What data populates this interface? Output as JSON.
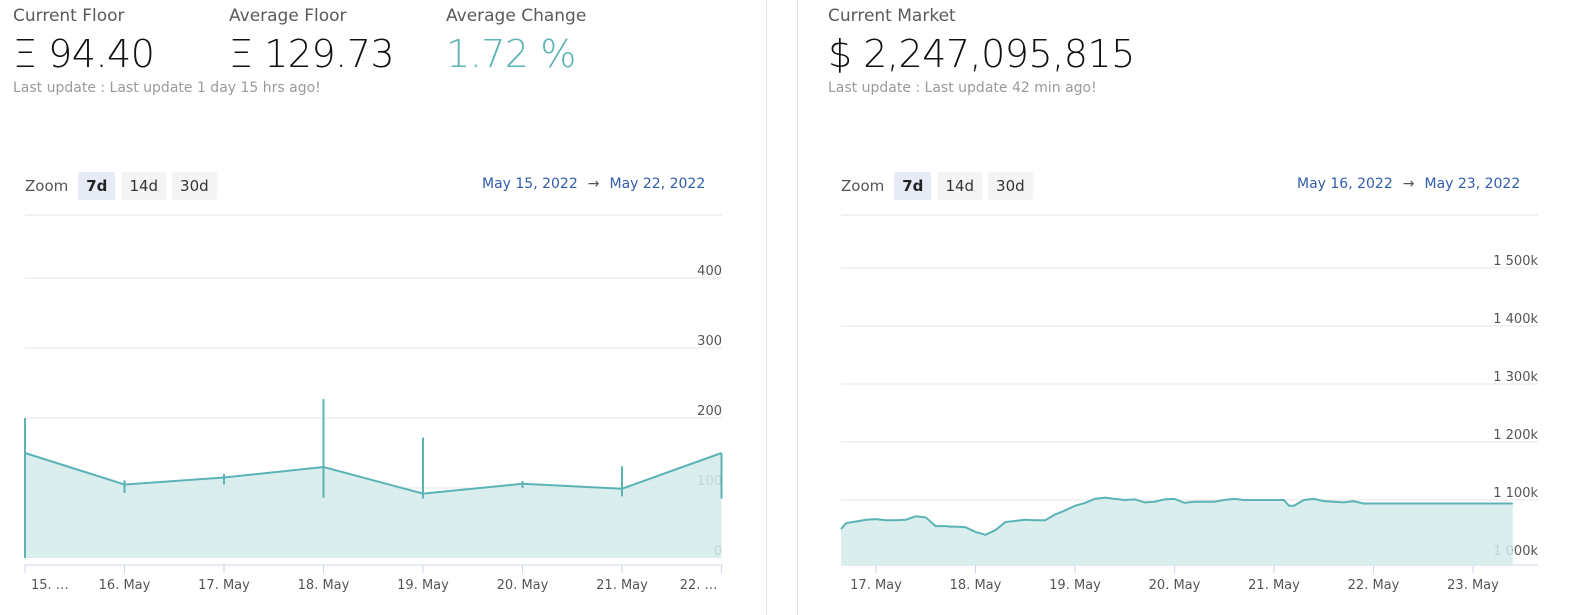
{
  "left": {
    "stats": [
      {
        "label": "Current Floor",
        "value": "Ξ 94.40"
      },
      {
        "label": "Average Floor",
        "value": "Ξ 129.73"
      },
      {
        "label": "Average Change",
        "value": "1.72 %"
      }
    ],
    "last_update": "Last update : Last update 1 day 15 hrs ago!",
    "zoom": {
      "label": "Zoom",
      "buttons": [
        "7d",
        "14d",
        "30d"
      ],
      "active": "7d"
    },
    "range": {
      "from": "May 15, 2022",
      "arrow": "→",
      "to": "May 22, 2022"
    }
  },
  "right": {
    "stats": [
      {
        "label": "Current Market",
        "value": "$ 2,247,095,815"
      }
    ],
    "last_update": "Last update : Last update 42 min ago!",
    "zoom": {
      "label": "Zoom",
      "buttons": [
        "7d",
        "14d",
        "30d"
      ],
      "active": "7d"
    },
    "range": {
      "from": "May 16, 2022",
      "arrow": "→",
      "to": "May 23, 2022"
    }
  },
  "colors": {
    "accent": "#5bb3b5",
    "fill": "#d3ebeb",
    "grid": "#e6e6e6",
    "link": "#335cad"
  },
  "chart_data": [
    {
      "type": "line",
      "chart_kind": "ohlc-line (line with high/low wicks)",
      "x_labels": [
        "15. …",
        "16. May",
        "17. May",
        "18. May",
        "19. May",
        "20. May",
        "21. May",
        "22. …"
      ],
      "y_ticks": [
        "0",
        "100",
        "200",
        "300",
        "400"
      ],
      "ylim": [
        0,
        400
      ],
      "series": [
        {
          "x": [
            0,
            1,
            2,
            3,
            4,
            5,
            6,
            7
          ],
          "values": [
            150,
            105,
            115,
            130,
            92,
            106,
            99,
            150
          ],
          "highs": [
            200,
            111,
            120,
            227,
            172,
            110,
            131,
            150
          ],
          "lows": [
            0,
            93,
            105,
            86,
            85,
            100,
            88,
            85
          ],
          "fill": true
        }
      ]
    },
    {
      "type": "area",
      "x_labels": [
        "17. May",
        "18. May",
        "19. May",
        "20. May",
        "21. May",
        "22. May",
        "23. May"
      ],
      "y_ticks": [
        "1 000k",
        "1 100k",
        "1 200k",
        "1 300k",
        "1 400k",
        "1 500k"
      ],
      "ylim": [
        1000,
        1500
      ],
      "unit": "thousands",
      "series": [
        {
          "x": [
            -0.4,
            -0.3,
            -0.2,
            -0.1,
            0,
            0.1,
            0.2,
            0.3,
            0.4,
            0.5,
            0.6,
            0.65,
            0.7,
            0.75,
            0.8,
            0.9,
            1.0,
            1.1,
            1.2,
            1.3,
            1.4,
            1.5,
            1.6,
            1.7,
            1.8,
            1.9,
            2.0,
            2.1,
            2.2,
            2.3,
            2.4,
            2.5,
            2.6,
            2.7,
            2.8,
            2.9,
            3.0,
            3.1,
            3.2,
            3.3,
            3.4,
            3.5,
            3.6,
            3.7,
            3.8,
            3.9,
            4.0,
            4.1,
            4.15,
            4.2,
            4.3,
            4.4,
            4.5,
            4.6,
            4.7,
            4.8,
            4.9,
            5.0,
            5.1,
            5.2,
            5.25,
            5.3,
            5.35,
            5.4,
            5.5,
            5.6,
            5.7,
            5.8,
            5.9,
            6.0,
            6.1,
            6.2,
            6.3,
            6.4
          ],
          "values": [
            1050,
            1060,
            1063,
            1066,
            1067,
            1065,
            1065,
            1066,
            1072,
            1070,
            1055,
            1055,
            1055,
            1054,
            1054,
            1053,
            1045,
            1040,
            1048,
            1062,
            1064,
            1066,
            1065,
            1065,
            1075,
            1082,
            1090,
            1095,
            1102,
            1104,
            1102,
            1100,
            1101,
            1096,
            1097,
            1101,
            1102,
            1095,
            1097,
            1097,
            1097,
            1100,
            1102,
            1100,
            1100,
            1100,
            1100,
            1100,
            1090,
            1090,
            1100,
            1102,
            1098,
            1097,
            1096,
            1098,
            1094,
            1094,
            1094,
            1094,
            1094,
            1094,
            1094,
            1094,
            1094,
            1094,
            1094,
            1094,
            1094,
            1094,
            1094,
            1094,
            1094,
            1094
          ]
        }
      ]
    }
  ]
}
